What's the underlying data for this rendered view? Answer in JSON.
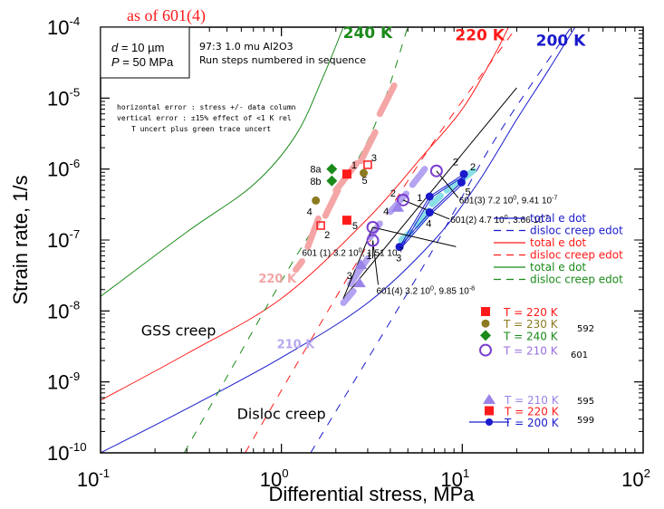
{
  "chart_data": {
    "type": "scatter",
    "title": "as of 601(4)",
    "xlabel": "Differential stress, MPa",
    "ylabel": "Strain rate, 1/s",
    "xscale": "log",
    "yscale": "log",
    "xlim": [
      0.1,
      100
    ],
    "ylim": [
      1e-10,
      0.0001
    ],
    "x_ticks": [
      {
        "v": 0.1,
        "m": "10",
        "e": "-1"
      },
      {
        "v": 1,
        "m": "10",
        "e": "0"
      },
      {
        "v": 10,
        "m": "10",
        "e": "1"
      },
      {
        "v": 100,
        "m": "10",
        "e": "2"
      }
    ],
    "y_ticks": [
      {
        "v": 1e-10,
        "m": "10",
        "e": "-10"
      },
      {
        "v": 1e-09,
        "m": "10",
        "e": "-9"
      },
      {
        "v": 1e-08,
        "m": "10",
        "e": "-8"
      },
      {
        "v": 1e-07,
        "m": "10",
        "e": "-7"
      },
      {
        "v": 1e-06,
        "m": "10",
        "e": "-6"
      },
      {
        "v": 1e-05,
        "m": "10",
        "e": "-5"
      },
      {
        "v": 0.0001,
        "m": "10",
        "e": "-4"
      }
    ],
    "info_box": {
      "line1_var": "d",
      "line1_rest": " = 10 µm",
      "line2_var": "P",
      "line2_rest": " = 50 MPa"
    },
    "sample_note": [
      "97:3 1.0 mu Al2O3",
      "Run steps numbered in sequence"
    ],
    "error_note": [
      "horizontal error : stress +/- data column",
      "vertical error : ±15% effect of <1 K rel",
      "T uncert plus green trace uncert"
    ],
    "temp_labels": [
      {
        "text": "240 K",
        "color": "#1a8a1a",
        "x": 3.0,
        "y": 7e-05
      },
      {
        "text": "220 K",
        "color": "#ff1a1a",
        "x": 12.5,
        "y": 6.5e-05
      },
      {
        "text": "200 K",
        "color": "#1a1acc",
        "x": 35,
        "y": 5.5e-05
      },
      {
        "text": "220 K",
        "color": "#f4a6a6",
        "x": 0.95,
        "y": 2.5e-08
      },
      {
        "text": "210 K",
        "color": "#b8a8f0",
        "x": 1.2,
        "y": 3e-09
      }
    ],
    "regime_labels": [
      {
        "text": "GSS creep",
        "x": 0.27,
        "y": 4.5e-09
      },
      {
        "text": "Disloc creep",
        "x": 1.0,
        "y": 3e-10
      }
    ],
    "colors": {
      "c200": "#1a1acc",
      "c220": "#ff1a1a",
      "c240": "#1a8a1a",
      "c230": "#8b7a20",
      "c210": "#b3a3f0",
      "c210dk": "#7a3fcf",
      "pink": "#f4a6a6",
      "cyan": "#8ae0e6",
      "black": "#000000"
    },
    "series": [
      {
        "name": "200 K total e dot",
        "color": "#1a1acc",
        "dash": false,
        "points": [
          [
            0.1,
            1e-10
          ],
          [
            0.3,
            4.2e-10
          ],
          [
            1,
            2.2e-09
          ],
          [
            3,
            1.3e-08
          ],
          [
            7,
            1e-07
          ],
          [
            12,
            6e-07
          ],
          [
            20,
            5e-06
          ],
          [
            30,
            2.5e-05
          ],
          [
            42,
            0.0001
          ]
        ]
      },
      {
        "name": "200 K disloc creep edot",
        "color": "#1a1acc",
        "dash": true,
        "points": [
          [
            1.45,
            1e-10
          ],
          [
            6,
            4e-08
          ],
          [
            15,
            2.5e-06
          ],
          [
            40,
            0.0001
          ]
        ]
      },
      {
        "name": "220 K total e dot",
        "color": "#ff1a1a",
        "dash": false,
        "points": [
          [
            0.1,
            5.5e-10
          ],
          [
            0.3,
            2.5e-09
          ],
          [
            1,
            1.5e-08
          ],
          [
            3,
            2e-07
          ],
          [
            6,
            1.5e-06
          ],
          [
            10,
            7e-06
          ],
          [
            15,
            4e-05
          ],
          [
            18,
            0.0001
          ]
        ]
      },
      {
        "name": "220 K disloc creep edot",
        "color": "#ff1a1a",
        "dash": true,
        "points": [
          [
            0.63,
            1e-10
          ],
          [
            2.5,
            4e-08
          ],
          [
            7,
            2.5e-06
          ],
          [
            20,
            0.0001
          ]
        ]
      },
      {
        "name": "240 K total e dot",
        "color": "#1a8a1a",
        "dash": false,
        "points": [
          [
            0.1,
            1.6e-08
          ],
          [
            0.3,
            1.3e-07
          ],
          [
            0.7,
            6e-07
          ],
          [
            1.2,
            3e-06
          ],
          [
            1.7,
            2e-05
          ],
          [
            2.2,
            0.0001
          ]
        ]
      },
      {
        "name": "240 K disloc creep edot",
        "color": "#1a8a1a",
        "dash": true,
        "points": [
          [
            0.29,
            1e-10
          ],
          [
            1.1,
            4e-08
          ],
          [
            3,
            2.5e-06
          ],
          [
            5,
            0.0001
          ]
        ]
      },
      {
        "name": "black reference",
        "color": "#000000",
        "dash": false,
        "points": [
          [
            2.2,
            1.5e-08
          ],
          [
            20,
            1.4e-05
          ]
        ]
      }
    ],
    "error_bars": [
      {
        "color": "#f4a6a6",
        "from": [
          1.2,
          3.8e-08
        ],
        "to": [
          1.3,
          5e-08
        ]
      },
      {
        "color": "#f4a6a6",
        "from": [
          1.4,
          8e-08
        ],
        "to": [
          1.6,
          2e-07
        ]
      },
      {
        "color": "#f4a6a6",
        "from": [
          1.75,
          2.2e-07
        ],
        "to": [
          2.05,
          5e-07
        ]
      },
      {
        "color": "#f4a6a6",
        "from": [
          2.0,
          5e-07
        ],
        "to": [
          2.6,
          1.2e-06
        ]
      },
      {
        "color": "#f4a6a6",
        "from": [
          2.75,
          1.3e-06
        ],
        "to": [
          3.3,
          3.3e-06
        ]
      },
      {
        "color": "#f4a6a6",
        "from": [
          3.5,
          6e-06
        ],
        "to": [
          4.2,
          1.5e-05
        ]
      },
      {
        "color": "#b3a3f0",
        "from": [
          2.2,
          1.3e-08
        ],
        "to": [
          2.5,
          1.9e-08
        ]
      },
      {
        "color": "#b3a3f0",
        "from": [
          2.4,
          2.4e-08
        ],
        "to": [
          3.0,
          5.5e-08
        ]
      },
      {
        "color": "#b3a3f0",
        "from": [
          3.1,
          1.1e-07
        ],
        "to": [
          3.5,
          1.7e-07
        ]
      },
      {
        "color": "#b3a3f0",
        "from": [
          4.0,
          2.5e-07
        ],
        "to": [
          4.9,
          4.5e-07
        ]
      },
      {
        "color": "#b3a3f0",
        "from": [
          5.3,
          6e-07
        ],
        "to": [
          6.2,
          1e-06
        ]
      },
      {
        "color": "#8ae0e6",
        "from": [
          4.6,
          1e-07
        ],
        "to": [
          5.2,
          1.3e-07
        ]
      },
      {
        "color": "#8ae0e6",
        "from": [
          5.6,
          1.6e-07
        ],
        "to": [
          6.5,
          2.6e-07
        ]
      },
      {
        "color": "#8ae0e6",
        "from": [
          6.8,
          3.2e-07
        ],
        "to": [
          7.6,
          4.2e-07
        ]
      },
      {
        "color": "#8ae0e6",
        "from": [
          8.2,
          5e-07
        ],
        "to": [
          9.5,
          6.5e-07
        ]
      },
      {
        "color": "#8ae0e6",
        "from": [
          10.3,
          7.6e-07
        ],
        "to": [
          11.5,
          9.5e-07
        ]
      }
    ],
    "points": [
      {
        "set": "592",
        "T": "220 K",
        "marker": "square",
        "color": "#ff1a1a",
        "x": 2.3,
        "y": 8.5e-07,
        "label": "1"
      },
      {
        "set": "592",
        "T": "220 K",
        "marker": "square-open",
        "color": "#ff1a1a",
        "x": 1.65,
        "y": 1.6e-07,
        "label": "2"
      },
      {
        "set": "592",
        "T": "220 K",
        "marker": "square-open",
        "color": "#ff1a1a",
        "x": 3.0,
        "y": 1.15e-06,
        "label": "3"
      },
      {
        "set": "592",
        "T": "220 K",
        "marker": "square",
        "color": "#ff1a1a",
        "x": 2.3,
        "y": 1.9e-07,
        "label": "5"
      },
      {
        "set": "592",
        "T": "230 K",
        "marker": "circle",
        "color": "#8b7a20",
        "x": 1.55,
        "y": 3.6e-07,
        "label": "4"
      },
      {
        "set": "592",
        "T": "230 K",
        "marker": "circle",
        "color": "#8b7a20",
        "x": 2.85,
        "y": 8.8e-07,
        "label": "5"
      },
      {
        "set": "592",
        "T": "240 K",
        "marker": "diamond",
        "color": "#1a8a1a",
        "x": 1.9,
        "y": 1e-06,
        "label": "8a"
      },
      {
        "set": "592",
        "T": "240 K",
        "marker": "diamond",
        "color": "#1a8a1a",
        "x": 1.9,
        "y": 6.8e-07,
        "label": "8b"
      },
      {
        "set": "601",
        "T": "210 K",
        "marker": "circle-open",
        "color": "#7a3fcf",
        "x": 3.2,
        "y": 1.51e-07,
        "label": ""
      },
      {
        "set": "601",
        "T": "210 K",
        "marker": "circle-open",
        "color": "#7a3fcf",
        "x": 4.7,
        "y": 3.66e-07,
        "label": "2"
      },
      {
        "set": "601",
        "T": "210 K",
        "marker": "circle-open",
        "color": "#7a3fcf",
        "x": 7.2,
        "y": 9.41e-07,
        "label": "2"
      },
      {
        "set": "601",
        "T": "210 K",
        "marker": "circle-open",
        "color": "#7a3fcf",
        "x": 3.2,
        "y": 9.85e-08,
        "label": ""
      },
      {
        "set": "595",
        "T": "210 K",
        "marker": "triangle",
        "color": "#9a83e8",
        "x": 2.75,
        "y": 4.5e-08,
        "label": "1"
      },
      {
        "set": "595",
        "T": "210 K",
        "marker": "triangle",
        "color": "#9a83e8",
        "x": 2.7,
        "y": 2.5e-08,
        "label": "3"
      },
      {
        "set": "595",
        "T": "210 K",
        "marker": "triangle",
        "color": "#9a83e8",
        "x": 4.4,
        "y": 2.9e-07,
        "label": "4"
      },
      {
        "set": "599",
        "T": "200 K",
        "marker": "circle",
        "color": "#1a1acc",
        "x": 4.5,
        "y": 8e-08,
        "label": "3"
      },
      {
        "set": "599",
        "T": "200 K",
        "marker": "circle",
        "color": "#1a1acc",
        "x": 6.6,
        "y": 4.1e-07,
        "label": "1"
      },
      {
        "set": "599",
        "T": "200 K",
        "marker": "circle",
        "color": "#1a1acc",
        "x": 10.2,
        "y": 8.5e-07,
        "label": "2"
      },
      {
        "set": "599",
        "T": "200 K",
        "marker": "circle",
        "color": "#1a1acc",
        "x": 9.9,
        "y": 6.5e-07,
        "label": "5"
      },
      {
        "set": "599",
        "T": "200 K",
        "marker": "circle",
        "color": "#1a1acc",
        "x": 6.6,
        "y": 2.45e-07,
        "label": "4"
      }
    ],
    "series_599_line": [
      [
        4.5,
        8e-08
      ],
      [
        6.6,
        4.1e-07
      ],
      [
        10.2,
        8.5e-07
      ],
      [
        9.9,
        6.5e-07
      ],
      [
        6.6,
        2.45e-07
      ],
      [
        4.5,
        8e-08
      ]
    ],
    "annotations": [
      {
        "text": "601 (1) 3.2 10",
        "sup1": "0",
        "mid": ", 1.51 10",
        "sup2": "-7",
        "x": 1.3,
        "y": 6e-08,
        "ptr": [
          3.2,
          1.51e-07
        ]
      },
      {
        "text": "601(4) 3.2 10",
        "sup1": "0",
        "mid": ", 9.85 10",
        "sup2": "-8",
        "x": 3.35,
        "y": 1.75e-08,
        "ptr": [
          3.2,
          9.85e-08
        ]
      },
      {
        "text": "601(2) 4.7 10",
        "sup1": "0",
        "mid": ", 3.66 10",
        "sup2": "-7",
        "x": 8.6,
        "y": 1.75e-07,
        "ptr": [
          4.7,
          3.66e-07
        ]
      },
      {
        "text": "601(3) 7.2 10",
        "sup1": "0",
        "mid": ", 9.41 10",
        "sup2": "-7",
        "x": 9.6,
        "y": 3.3e-07,
        "ptr": [
          7.2,
          9.41e-07
        ]
      }
    ],
    "legend_lines": [
      {
        "text": "total e dot",
        "color": "#1a1acc",
        "dash": false
      },
      {
        "text": "disloc creep edot",
        "color": "#1a1acc",
        "dash": true
      },
      {
        "text": "total e dot",
        "color": "#ff1a1a",
        "dash": false
      },
      {
        "text": "disloc creep edot",
        "color": "#ff1a1a",
        "dash": true
      },
      {
        "text": "total e dot",
        "color": "#1a8a1a",
        "dash": false
      },
      {
        "text": "disloc creep edot",
        "color": "#1a8a1a",
        "dash": true
      }
    ],
    "legend_points_a": [
      {
        "text": "T = 220 K",
        "color": "#ff1a1a",
        "marker": "square"
      },
      {
        "text": "T = 230 K",
        "color": "#8b7a20",
        "marker": "circle"
      },
      {
        "text": "T = 240 K",
        "color": "#1a8a1a",
        "marker": "diamond"
      },
      {
        "text": "T = 210 K",
        "color": "#7a3fcf",
        "marker": "circle-open",
        "textcolor": "#9a6fe0"
      }
    ],
    "legend_points_b": [
      {
        "text": "T = 210 K",
        "color": "#9a83e8",
        "marker": "triangle",
        "textcolor": "#9a83e8"
      },
      {
        "text": "T = 220 K",
        "color": "#ff1a1a",
        "marker": "square"
      },
      {
        "text": "T = 200 K",
        "color": "#1a1acc",
        "marker": "circle-line"
      }
    ],
    "run_ids": [
      {
        "text": "592"
      },
      {
        "text": "601"
      },
      {
        "text": "595"
      },
      {
        "text": "599"
      }
    ],
    "legend": "right-middle",
    "grid": false
  }
}
